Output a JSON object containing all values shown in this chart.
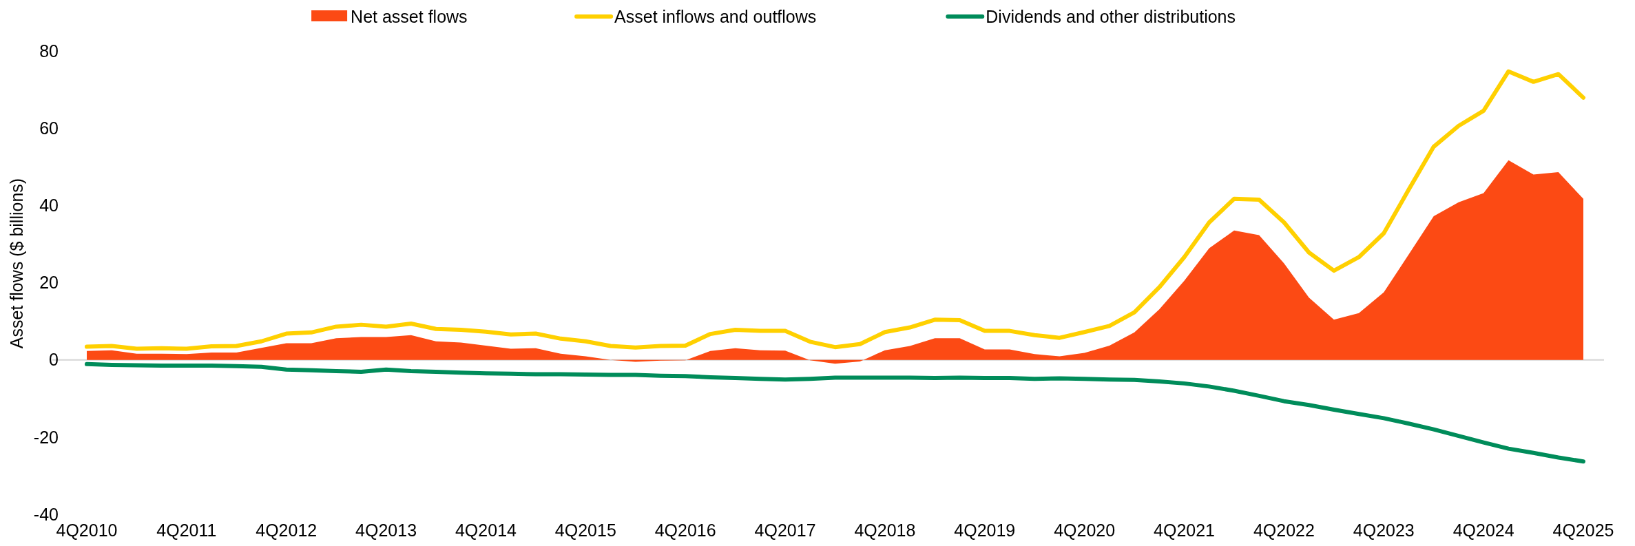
{
  "chart_data": {
    "type": "line",
    "ylabel": "Asset flows ($ billions)",
    "categories": [
      "4Q2010",
      null,
      null,
      null,
      "4Q2011",
      null,
      null,
      null,
      "4Q2012",
      null,
      null,
      null,
      "4Q2013",
      null,
      null,
      null,
      "4Q2014",
      null,
      null,
      null,
      "4Q2015",
      null,
      null,
      null,
      "4Q2016",
      null,
      null,
      null,
      "4Q2017",
      null,
      null,
      null,
      "4Q2018",
      null,
      null,
      null,
      "4Q2019",
      null,
      null,
      null,
      "4Q2020",
      null,
      null,
      null,
      "4Q2021",
      null,
      null,
      null,
      "4Q2022",
      null,
      null,
      null,
      "4Q2023",
      null,
      null,
      null,
      "4Q2024",
      null,
      null,
      null,
      "4Q2025"
    ],
    "series": [
      {
        "name": "Net asset flows",
        "type": "area",
        "color": "#fc4a14",
        "values": [
          2.3,
          2.5,
          1.6,
          1.6,
          1.5,
          1.9,
          1.9,
          3.1,
          4.3,
          4.3,
          5.6,
          5.9,
          5.9,
          6.4,
          4.8,
          4.5,
          3.7,
          2.9,
          3.0,
          1.6,
          0.9,
          0,
          -0.5,
          -0.2,
          -0.1,
          2.3,
          3.0,
          2.5,
          2.4,
          -0.1,
          -1.0,
          -0.4,
          2.5,
          3.6,
          5.6,
          5.6,
          2.7,
          2.7,
          1.5,
          0.9,
          1.8,
          3.7,
          7.1,
          13.1,
          20.5,
          28.9,
          33.5,
          32.3,
          25.0,
          16.1,
          10.4,
          12.1,
          17.5,
          27.3,
          37.2,
          40.8,
          43.2,
          51.7,
          48.0,
          48.6,
          41.7
        ]
      },
      {
        "name": "Asset inflows and outflows",
        "color": "#ffd000",
        "values": [
          3.4,
          3.6,
          2.9,
          3.0,
          2.9,
          3.5,
          3.6,
          4.8,
          6.8,
          7.1,
          8.6,
          9.1,
          8.6,
          9.4,
          8.0,
          7.8,
          7.3,
          6.6,
          6.8,
          5.5,
          4.8,
          3.6,
          3.2,
          3.6,
          3.7,
          6.7,
          7.8,
          7.5,
          7.5,
          4.7,
          3.3,
          4.1,
          7.2,
          8.4,
          10.4,
          10.3,
          7.5,
          7.5,
          6.4,
          5.7,
          7.2,
          8.8,
          12.3,
          18.8,
          26.6,
          35.6,
          41.7,
          41.5,
          35.6,
          27.8,
          23.1,
          26.6,
          32.8,
          44.1,
          55.2,
          60.6,
          64.5,
          74.7,
          72.0,
          74.0,
          67.9
        ]
      },
      {
        "name": "Dividends and other distributions",
        "color": "#008c5a",
        "values": [
          -1.1,
          -1.3,
          -1.4,
          -1.5,
          -1.5,
          -1.5,
          -1.6,
          -1.8,
          -2.5,
          -2.7,
          -2.9,
          -3.1,
          -2.5,
          -2.9,
          -3.1,
          -3.3,
          -3.5,
          -3.6,
          -3.7,
          -3.7,
          -3.8,
          -3.9,
          -3.9,
          -4.1,
          -4.2,
          -4.5,
          -4.7,
          -4.9,
          -5.1,
          -4.9,
          -4.6,
          -4.6,
          -4.6,
          -4.6,
          -4.7,
          -4.6,
          -4.7,
          -4.7,
          -4.9,
          -4.8,
          -4.9,
          -5.1,
          -5.2,
          -5.6,
          -6.1,
          -6.9,
          -8.0,
          -9.3,
          -10.7,
          -11.7,
          -12.9,
          -14.0,
          -15.1,
          -16.5,
          -18.0,
          -19.7,
          -21.4,
          -23.0,
          -24.1,
          -25.3,
          -26.3
        ]
      }
    ],
    "ylim": [
      -40,
      80
    ],
    "yticks": [
      -40,
      -20,
      0,
      20,
      40,
      60,
      80
    ],
    "ref_lines": [
      {
        "axis": "y",
        "value": 0,
        "color": "#d4d4d4"
      }
    ],
    "legend": "top"
  }
}
